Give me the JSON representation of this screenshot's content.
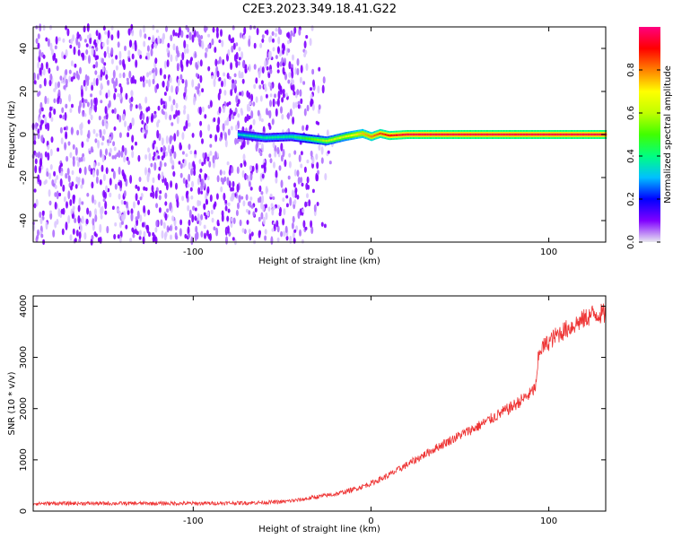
{
  "figure": {
    "title": "C2E3.2023.349.18.41.G22"
  },
  "chart_data": [
    {
      "type": "heatmap",
      "xlabel": "Height of straight line (km)",
      "ylabel": "Frequency (Hz)",
      "xlim": [
        -190,
        132
      ],
      "ylim": [
        -50,
        50
      ],
      "xticks": [
        -100,
        0,
        100
      ],
      "xtick_labels": [
        "-100",
        "0",
        "100"
      ],
      "yticks": [
        -40,
        -20,
        0,
        20,
        40
      ],
      "ytick_labels": [
        "-40",
        "-20",
        "0",
        "20",
        "40"
      ],
      "colorbar": {
        "label": "Normalized spectral amplitude",
        "range": [
          0,
          1
        ],
        "ticks": [
          0,
          0.2,
          0.4,
          0.6,
          0.8
        ],
        "tick_labels": [
          "0.0",
          "0.2",
          "0.4",
          "0.6",
          "0.8"
        ],
        "colormap": [
          "#e8e8f0",
          "#8000ff",
          "#0000ff",
          "#00c0ff",
          "#00ff80",
          "#40ff00",
          "#c0ff00",
          "#ffff00",
          "#ff8000",
          "#ff0000",
          "#ff0080"
        ]
      },
      "signal_trace": {
        "description_values": "carrier line near 0 Hz",
        "x": [
          -75,
          -60,
          -45,
          -35,
          -25,
          -15,
          -5,
          0,
          5,
          10,
          20,
          50,
          80,
          110,
          132
        ],
        "freq": [
          0,
          -1.5,
          -1,
          -2,
          -3,
          -1,
          0.5,
          -1,
          0.5,
          -0.5,
          0,
          0,
          0,
          0,
          0
        ],
        "amplitude": [
          0.3,
          0.35,
          0.35,
          0.45,
          0.55,
          0.6,
          0.7,
          0.75,
          0.8,
          0.85,
          0.9,
          0.9,
          0.9,
          0.9,
          0.9
        ]
      },
      "noise_region": {
        "x_start": -190,
        "x_end": -20,
        "amplitude_max": 0.2
      }
    },
    {
      "type": "line",
      "xlabel": "Height of straight line (km)",
      "ylabel": "SNR (10 * v/v)",
      "xlim": [
        -190,
        132
      ],
      "ylim": [
        0,
        4200
      ],
      "xticks": [
        -100,
        0,
        100
      ],
      "xtick_labels": [
        "-100",
        "0",
        "100"
      ],
      "yticks": [
        0,
        1000,
        2000,
        3000,
        4000
      ],
      "ytick_labels": [
        "0",
        "1000",
        "2000",
        "3000",
        "4000"
      ],
      "color": "#ee3333",
      "series": [
        {
          "x": [
            -190,
            -150,
            -100,
            -70,
            -50,
            -40,
            -30,
            -20,
            -10,
            0,
            10,
            20,
            30,
            40,
            50,
            60,
            70,
            80,
            90,
            93,
            94,
            95,
            100,
            105,
            110,
            115,
            120,
            125,
            132
          ],
          "values": [
            150,
            150,
            150,
            160,
            180,
            220,
            280,
            330,
            420,
            540,
            700,
            900,
            1100,
            1300,
            1480,
            1650,
            1850,
            2050,
            2300,
            2450,
            2950,
            3150,
            3300,
            3450,
            3550,
            3650,
            3750,
            3850,
            3850
          ]
        }
      ]
    }
  ]
}
